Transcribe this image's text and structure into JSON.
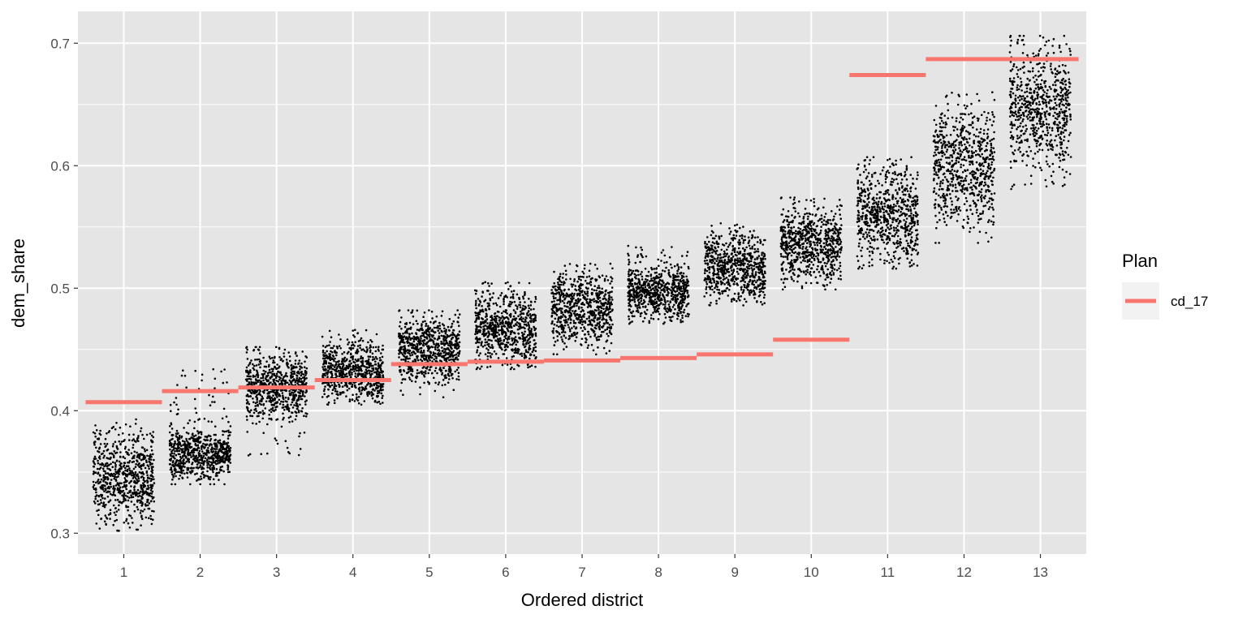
{
  "chart_data": {
    "type": "scatter",
    "title": "",
    "xlabel": "Ordered district",
    "ylabel": "dem_share",
    "categories": [
      "1",
      "2",
      "3",
      "4",
      "5",
      "6",
      "7",
      "8",
      "9",
      "10",
      "11",
      "12",
      "13"
    ],
    "xlim": [
      0.4,
      13.6
    ],
    "ylim": [
      0.283,
      0.726
    ],
    "y_ticks": [
      0.3,
      0.4,
      0.5,
      0.6,
      0.7
    ],
    "y_tick_labels": [
      "0.3",
      "0.4",
      "0.5",
      "0.6",
      "0.7"
    ],
    "grid": true,
    "background": "#e5e5e5",
    "legend": {
      "title": "Plan",
      "position": "right"
    },
    "series": [
      {
        "name": "cd_17",
        "kind": "segment",
        "color": "#f8766d",
        "values": [
          0.407,
          0.416,
          0.419,
          0.425,
          0.438,
          0.44,
          0.441,
          0.443,
          0.446,
          0.458,
          0.674,
          0.687,
          0.687
        ]
      }
    ],
    "simulated_distribution": {
      "kind": "jittered points",
      "color": "#000000",
      "median": [
        0.345,
        0.365,
        0.42,
        0.432,
        0.45,
        0.467,
        0.484,
        0.497,
        0.518,
        0.535,
        0.56,
        0.6,
        0.648
      ],
      "min": [
        0.302,
        0.34,
        0.362,
        0.405,
        0.411,
        0.434,
        0.446,
        0.471,
        0.486,
        0.499,
        0.516,
        0.537,
        0.581
      ],
      "max": [
        0.393,
        0.435,
        0.452,
        0.467,
        0.482,
        0.506,
        0.52,
        0.535,
        0.553,
        0.574,
        0.607,
        0.66,
        0.706
      ]
    }
  }
}
